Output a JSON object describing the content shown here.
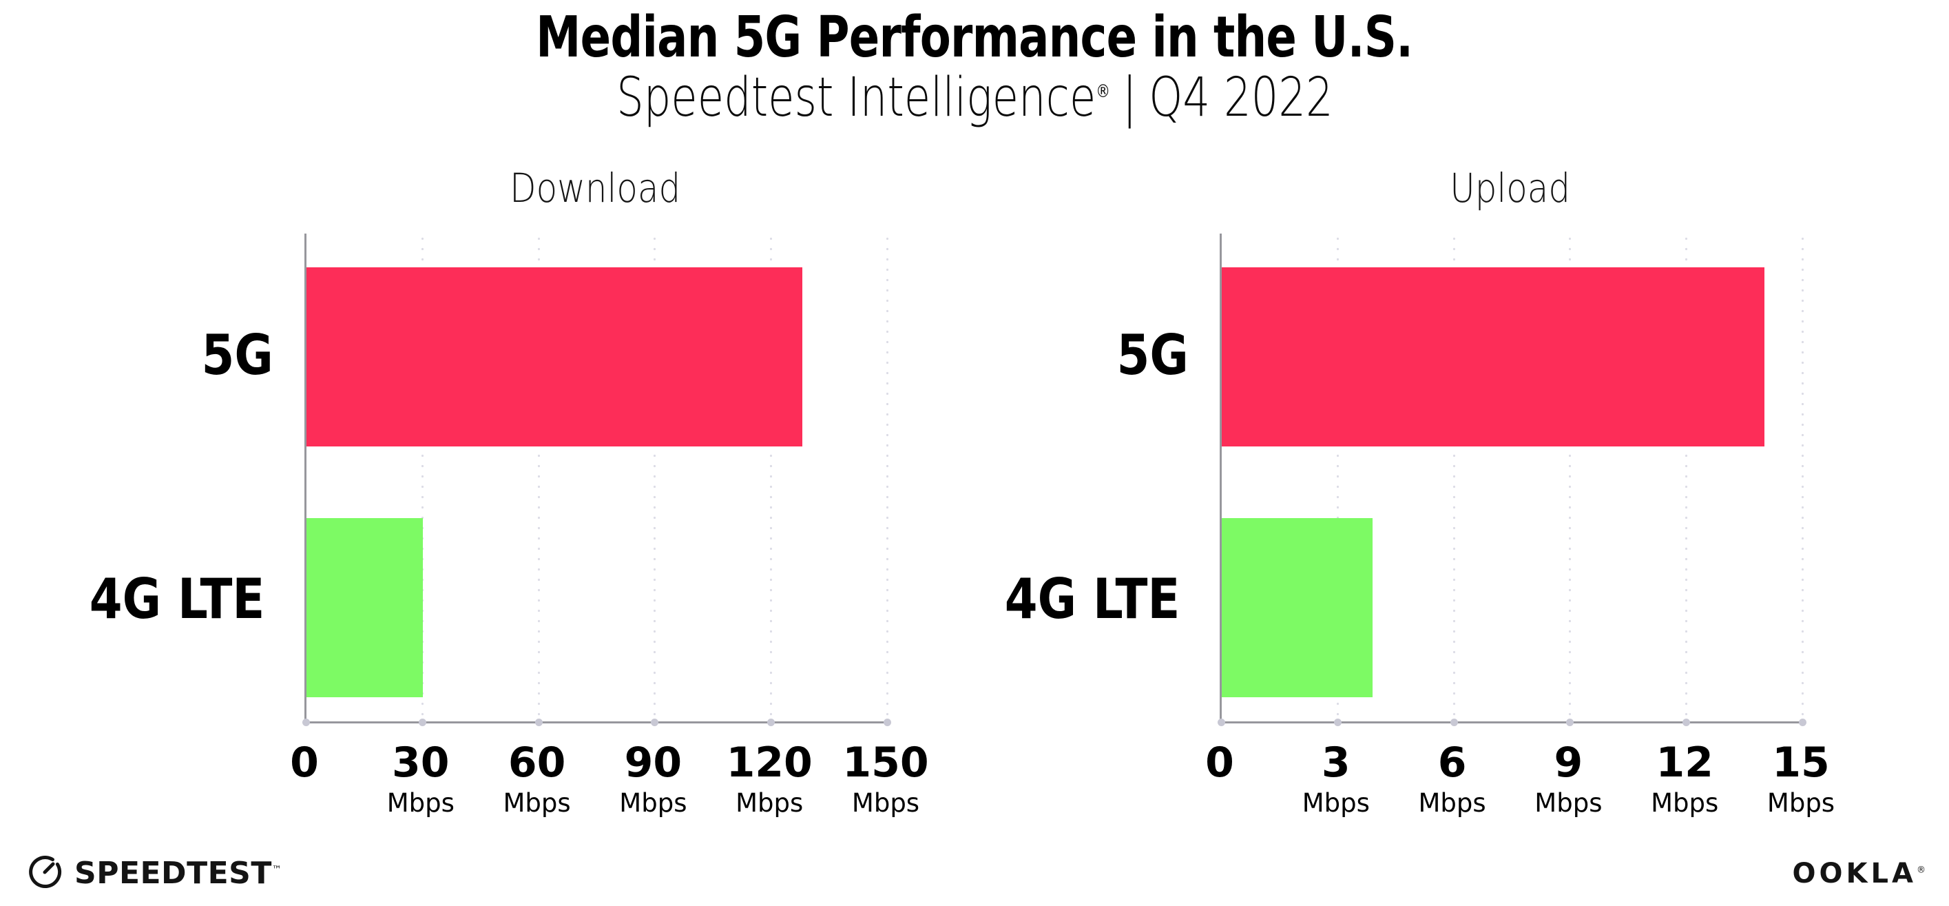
{
  "header": {
    "title": "Median 5G Performance in the U.S.",
    "subtitle_brand": "Speedtest Intelligence",
    "subtitle_reg": "®",
    "subtitle_sep": "|",
    "subtitle_period": "Q4 2022"
  },
  "footer": {
    "speedtest_label": "SPEEDTEST",
    "speedtest_mark": "™",
    "ookla_label": "OOKLA",
    "ookla_mark": "®",
    "gauge_icon": "speedtest-gauge-icon"
  },
  "colors": {
    "bar_5g": "#FD2D58",
    "bar_4g_lte": "#7DFA64",
    "axis": "#97979d",
    "gridline_dots": "#dcdce6",
    "tick_dots": "#c8c8d4",
    "text": "#000000"
  },
  "chart_data": [
    {
      "type": "bar",
      "orientation": "horizontal",
      "title": "Download",
      "categories": [
        "5G",
        "4G LTE"
      ],
      "values": [
        128,
        30
      ],
      "unit": "Mbps",
      "xlim": [
        0,
        150
      ],
      "xticks": [
        0,
        30,
        60,
        90,
        120,
        150
      ],
      "grid": "vertical dotted, no line at 0",
      "legend": "none",
      "bar_colors": [
        "#FD2D58",
        "#7DFA64"
      ]
    },
    {
      "type": "bar",
      "orientation": "horizontal",
      "title": "Upload",
      "categories": [
        "5G",
        "4G LTE"
      ],
      "values": [
        14,
        3.9
      ],
      "unit": "Mbps",
      "xlim": [
        0,
        15
      ],
      "xticks": [
        0,
        3,
        6,
        9,
        12,
        15
      ],
      "grid": "vertical dotted, no line at 0",
      "legend": "none",
      "bar_colors": [
        "#FD2D58",
        "#7DFA64"
      ]
    }
  ]
}
